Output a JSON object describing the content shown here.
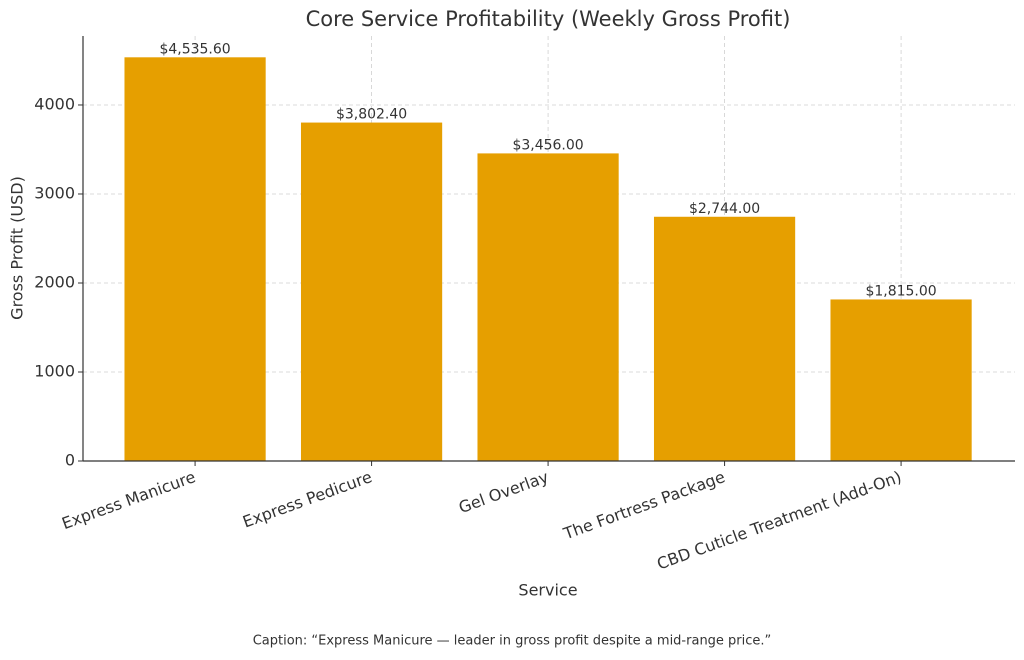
{
  "chart_data": {
    "type": "bar",
    "title": "Core Service Profitability (Weekly Gross Profit)",
    "x_label": "Service",
    "y_label": "Gross Profit (USD)",
    "categories": [
      "Express Manicure",
      "Express Pedicure",
      "Gel Overlay",
      "The Fortress Package",
      "CBD Cuticle Treatment (Add-On)"
    ],
    "values": [
      4535.6,
      3802.4,
      3456,
      2744,
      1815
    ],
    "value_labels": [
      "$4,535.60",
      "$3,802.40",
      "$3,456.00",
      "$2,744.00",
      "$1,815.00"
    ],
    "color": "#e69f00",
    "ylim": [
      0,
      4775
    ],
    "yticks": [
      0,
      1000,
      2000,
      3000,
      4000
    ],
    "grid": true
  },
  "caption": "Caption: “Express Manicure — leader in gross profit despite a mid-range price.”"
}
